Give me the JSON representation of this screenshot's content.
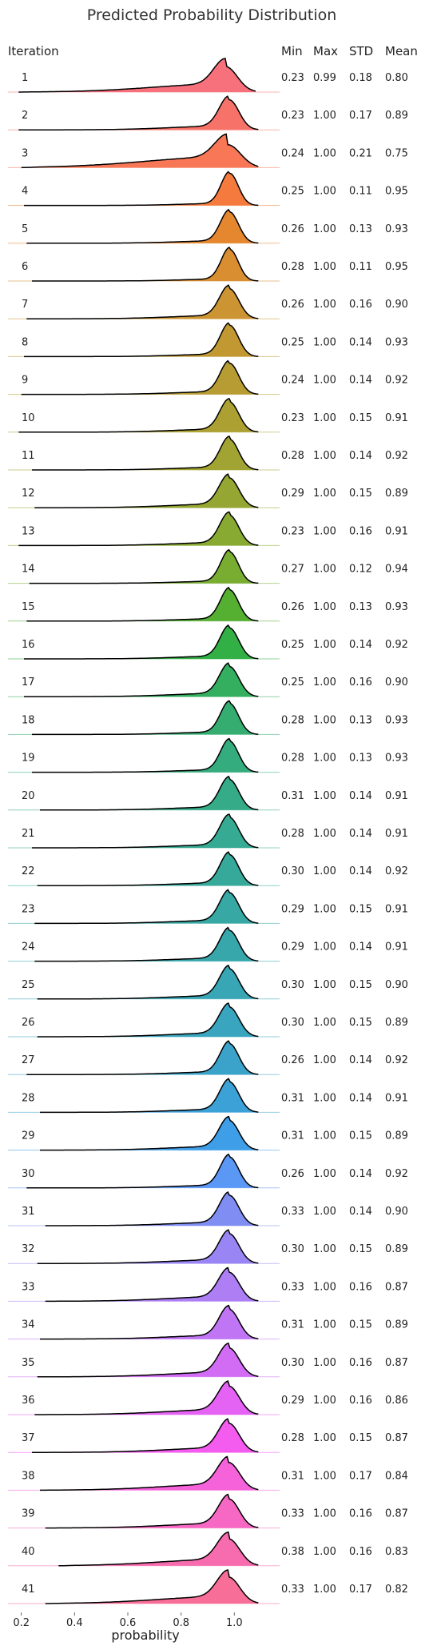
{
  "chart_data": {
    "type": "ridgeline",
    "title": "Predicted Probability Distribution",
    "xlabel": "probability",
    "row_header": "Iteration",
    "stat_headers": [
      "Min",
      "Max",
      "STD",
      "Mean"
    ],
    "x_ticks": [
      "0.2",
      "0.4",
      "0.6",
      "0.8",
      "1.0"
    ],
    "xlim": [
      0.15,
      1.17
    ],
    "rows": [
      {
        "iteration": "1",
        "min": "0.23",
        "max": "0.99",
        "std": "0.18",
        "mean": "0.80",
        "color": "#f7717d"
      },
      {
        "iteration": "2",
        "min": "0.23",
        "max": "1.00",
        "std": "0.17",
        "mean": "0.89",
        "color": "#f7736a"
      },
      {
        "iteration": "3",
        "min": "0.24",
        "max": "1.00",
        "std": "0.21",
        "mean": "0.75",
        "color": "#f77757"
      },
      {
        "iteration": "4",
        "min": "0.25",
        "max": "1.00",
        "std": "0.11",
        "mean": "0.95",
        "color": "#f47b3d"
      },
      {
        "iteration": "5",
        "min": "0.26",
        "max": "1.00",
        "std": "0.13",
        "mean": "0.93",
        "color": "#e5872f"
      },
      {
        "iteration": "6",
        "min": "0.28",
        "max": "1.00",
        "std": "0.11",
        "mean": "0.95",
        "color": "#d88e31"
      },
      {
        "iteration": "7",
        "min": "0.26",
        "max": "1.00",
        "std": "0.16",
        "mean": "0.90",
        "color": "#cc9432"
      },
      {
        "iteration": "8",
        "min": "0.25",
        "max": "1.00",
        "std": "0.14",
        "mean": "0.93",
        "color": "#c19832"
      },
      {
        "iteration": "9",
        "min": "0.24",
        "max": "1.00",
        "std": "0.14",
        "mean": "0.92",
        "color": "#b69c32"
      },
      {
        "iteration": "10",
        "min": "0.23",
        "max": "1.00",
        "std": "0.15",
        "mean": "0.91",
        "color": "#aca032"
      },
      {
        "iteration": "11",
        "min": "0.28",
        "max": "1.00",
        "std": "0.14",
        "mean": "0.92",
        "color": "#a1a332"
      },
      {
        "iteration": "12",
        "min": "0.29",
        "max": "1.00",
        "std": "0.15",
        "mean": "0.89",
        "color": "#96a632"
      },
      {
        "iteration": "13",
        "min": "0.23",
        "max": "1.00",
        "std": "0.16",
        "mean": "0.91",
        "color": "#89aa32"
      },
      {
        "iteration": "14",
        "min": "0.27",
        "max": "1.00",
        "std": "0.12",
        "mean": "0.94",
        "color": "#79ad32"
      },
      {
        "iteration": "15",
        "min": "0.26",
        "max": "1.00",
        "std": "0.13",
        "mean": "0.93",
        "color": "#55b032"
      },
      {
        "iteration": "16",
        "min": "0.25",
        "max": "1.00",
        "std": "0.14",
        "mean": "0.92",
        "color": "#33b045"
      },
      {
        "iteration": "17",
        "min": "0.25",
        "max": "1.00",
        "std": "0.16",
        "mean": "0.90",
        "color": "#34af5f"
      },
      {
        "iteration": "18",
        "min": "0.28",
        "max": "1.00",
        "std": "0.13",
        "mean": "0.93",
        "color": "#35ad70"
      },
      {
        "iteration": "19",
        "min": "0.28",
        "max": "1.00",
        "std": "0.13",
        "mean": "0.93",
        "color": "#35ac7d"
      },
      {
        "iteration": "20",
        "min": "0.31",
        "max": "1.00",
        "std": "0.14",
        "mean": "0.91",
        "color": "#35ab88"
      },
      {
        "iteration": "21",
        "min": "0.28",
        "max": "1.00",
        "std": "0.14",
        "mean": "0.91",
        "color": "#36aa92"
      },
      {
        "iteration": "22",
        "min": "0.30",
        "max": "1.00",
        "std": "0.14",
        "mean": "0.92",
        "color": "#36a99b"
      },
      {
        "iteration": "23",
        "min": "0.29",
        "max": "1.00",
        "std": "0.15",
        "mean": "0.91",
        "color": "#37a8a4"
      },
      {
        "iteration": "24",
        "min": "0.29",
        "max": "1.00",
        "std": "0.14",
        "mean": "0.91",
        "color": "#37a7ac"
      },
      {
        "iteration": "25",
        "min": "0.30",
        "max": "1.00",
        "std": "0.15",
        "mean": "0.90",
        "color": "#38a6b5"
      },
      {
        "iteration": "26",
        "min": "0.30",
        "max": "1.00",
        "std": "0.15",
        "mean": "0.89",
        "color": "#39a5be"
      },
      {
        "iteration": "27",
        "min": "0.26",
        "max": "1.00",
        "std": "0.14",
        "mean": "0.92",
        "color": "#3ba3c9"
      },
      {
        "iteration": "28",
        "min": "0.31",
        "max": "1.00",
        "std": "0.14",
        "mean": "0.91",
        "color": "#3ca1d6"
      },
      {
        "iteration": "29",
        "min": "0.31",
        "max": "1.00",
        "std": "0.15",
        "mean": "0.89",
        "color": "#3e9ee8"
      },
      {
        "iteration": "30",
        "min": "0.26",
        "max": "1.00",
        "std": "0.14",
        "mean": "0.92",
        "color": "#5b97f4"
      },
      {
        "iteration": "31",
        "min": "0.33",
        "max": "1.00",
        "std": "0.14",
        "mean": "0.90",
        "color": "#808ef4"
      },
      {
        "iteration": "32",
        "min": "0.30",
        "max": "1.00",
        "std": "0.15",
        "mean": "0.89",
        "color": "#9986f4"
      },
      {
        "iteration": "33",
        "min": "0.33",
        "max": "1.00",
        "std": "0.16",
        "mean": "0.87",
        "color": "#ad7ef4"
      },
      {
        "iteration": "34",
        "min": "0.31",
        "max": "1.00",
        "std": "0.15",
        "mean": "0.89",
        "color": "#c075f4"
      },
      {
        "iteration": "35",
        "min": "0.30",
        "max": "1.00",
        "std": "0.16",
        "mean": "0.87",
        "color": "#d26cf4"
      },
      {
        "iteration": "36",
        "min": "0.29",
        "max": "1.00",
        "std": "0.16",
        "mean": "0.86",
        "color": "#e563f4"
      },
      {
        "iteration": "37",
        "min": "0.28",
        "max": "1.00",
        "std": "0.15",
        "mean": "0.87",
        "color": "#f45bef"
      },
      {
        "iteration": "38",
        "min": "0.31",
        "max": "1.00",
        "std": "0.17",
        "mean": "0.84",
        "color": "#f562d9"
      },
      {
        "iteration": "39",
        "min": "0.33",
        "max": "1.00",
        "std": "0.16",
        "mean": "0.87",
        "color": "#f668c3"
      },
      {
        "iteration": "40",
        "min": "0.38",
        "max": "1.00",
        "std": "0.16",
        "mean": "0.83",
        "color": "#f66cae"
      },
      {
        "iteration": "41",
        "min": "0.33",
        "max": "1.00",
        "std": "0.17",
        "mean": "0.82",
        "color": "#f76f98"
      }
    ]
  }
}
